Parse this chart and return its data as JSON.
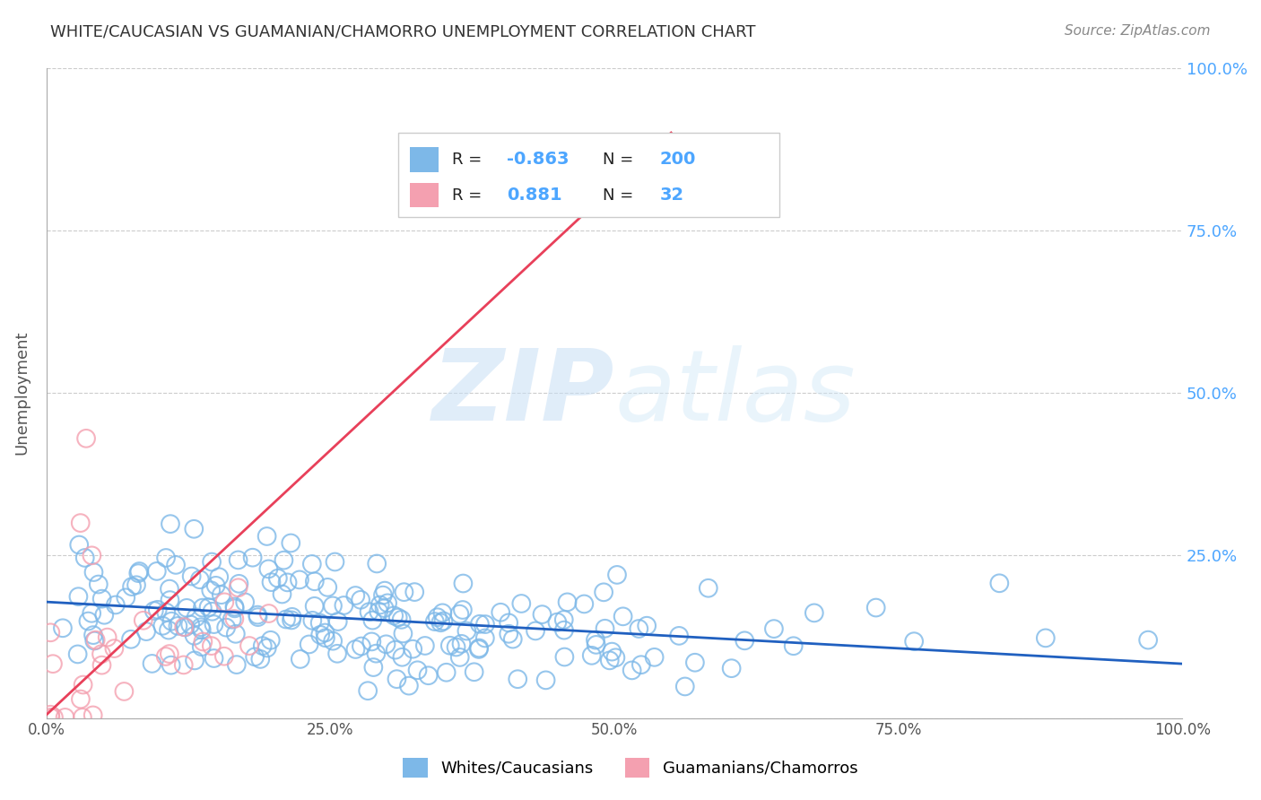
{
  "title": "WHITE/CAUCASIAN VS GUAMANIAN/CHAMORRO UNEMPLOYMENT CORRELATION CHART",
  "source": "Source: ZipAtlas.com",
  "ylabel": "Unemployment",
  "watermark_zip": "ZIP",
  "watermark_atlas": "atlas",
  "legend_blue_R": "-0.863",
  "legend_blue_N": "200",
  "legend_pink_R": "0.881",
  "legend_pink_N": "32",
  "blue_color": "#7db8e8",
  "pink_color": "#f4a0b0",
  "blue_line_color": "#2060c0",
  "pink_line_color": "#e8405a",
  "axis_label_color": "#4da6ff",
  "background_color": "#ffffff",
  "grid_color": "#cccccc",
  "title_color": "#333333",
  "blue_scatter_seed": 42,
  "pink_scatter_seed": 7,
  "xlim": [
    0,
    1
  ],
  "ylim": [
    0,
    1
  ],
  "blue_N": 200,
  "pink_N": 32,
  "xtick_labels": [
    "0.0%",
    "25.0%",
    "50.0%",
    "75.0%",
    "100.0%"
  ],
  "xtick_positions": [
    0,
    0.25,
    0.5,
    0.75,
    1.0
  ],
  "ytick_labels": [
    "",
    "25.0%",
    "50.0%",
    "75.0%",
    "100.0%"
  ],
  "ytick_positions": [
    0,
    0.25,
    0.5,
    0.75,
    1.0
  ]
}
